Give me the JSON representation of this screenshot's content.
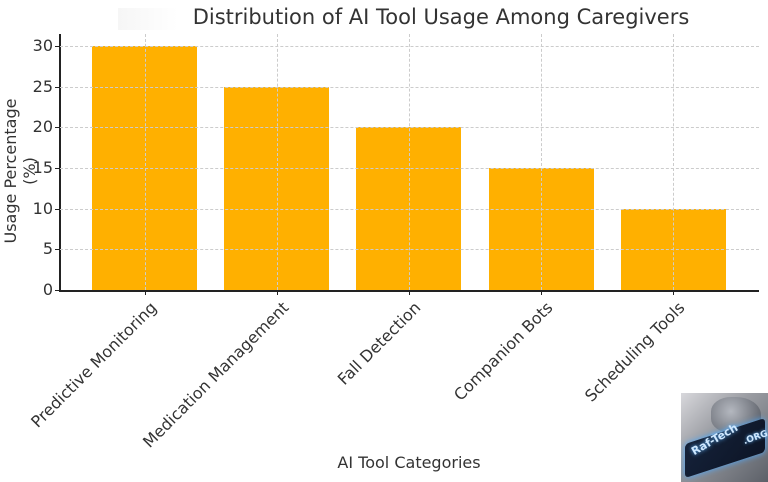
{
  "chart_data": {
    "type": "bar",
    "title": "Distribution of AI Tool Usage Among Caregivers",
    "xlabel": "AI Tool Categories",
    "ylabel": "Usage Percentage (%)",
    "categories": [
      "Predictive Monitoring",
      "Medication Management",
      "Fall Detection",
      "Companion Bots",
      "Scheduling Tools"
    ],
    "values": [
      30,
      25,
      20,
      15,
      10
    ],
    "ylim": [
      0,
      31.5
    ],
    "yticks": [
      "0",
      "5",
      "10",
      "15",
      "20",
      "25",
      "30"
    ],
    "grid": true,
    "bar_color": "#ffb000",
    "legend": null
  },
  "watermark": {
    "text": "Raf-Tech",
    "suffix": ".ORG"
  }
}
